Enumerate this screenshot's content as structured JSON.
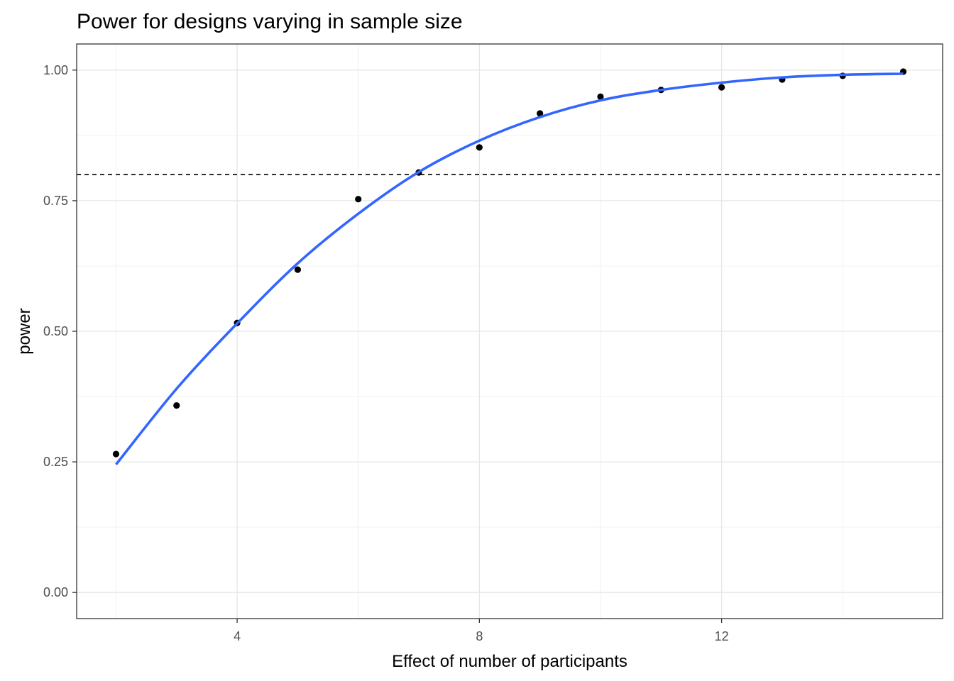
{
  "chart_data": {
    "type": "scatter",
    "title": "Power for designs varying in sample size",
    "xlabel": "Effect of number of participants",
    "ylabel": "power",
    "xlim": [
      1.35,
      15.65
    ],
    "ylim": [
      -0.05,
      1.05
    ],
    "x_ticks": [
      4,
      8,
      12
    ],
    "x_tick_labels": [
      "4",
      "8",
      "12"
    ],
    "x_minor_ticks": [
      2,
      6,
      10,
      14
    ],
    "y_ticks": [
      0,
      0.25,
      0.5,
      0.75,
      1.0
    ],
    "y_tick_labels": [
      "0.00",
      "0.25",
      "0.50",
      "0.75",
      "1.00"
    ],
    "y_minor_ticks": [
      0.125,
      0.375,
      0.625,
      0.875
    ],
    "grid": true,
    "reference_line": {
      "y": 0.8,
      "style": "dashed",
      "color": "#000000"
    },
    "points": {
      "color": "#000000",
      "x": [
        2,
        3,
        4,
        5,
        6,
        7,
        8,
        9,
        10,
        11,
        12,
        13,
        14,
        15
      ],
      "y": [
        0.265,
        0.358,
        0.516,
        0.618,
        0.753,
        0.804,
        0.852,
        0.917,
        0.949,
        0.962,
        0.967,
        0.982,
        0.989,
        0.997
      ]
    },
    "smooth": {
      "color": "#3366FF",
      "x": [
        2,
        3,
        4,
        5,
        6,
        7,
        8,
        9,
        10,
        11,
        12,
        13,
        14,
        15
      ],
      "y": [
        0.245,
        0.39,
        0.515,
        0.63,
        0.725,
        0.805,
        0.865,
        0.91,
        0.942,
        0.962,
        0.976,
        0.986,
        0.991,
        0.993
      ]
    }
  }
}
